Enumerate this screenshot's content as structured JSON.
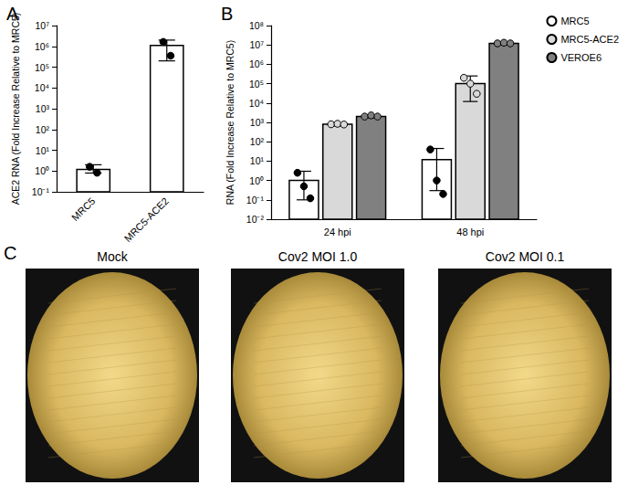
{
  "chart_data": [
    {
      "type": "bar",
      "title": "A",
      "categories": [
        "MRC5",
        "MRC5-ACE2"
      ],
      "values": [
        1.2,
        1100000
      ],
      "error_bars": [
        [
          0.8,
          2
        ],
        [
          200000,
          2000000
        ]
      ],
      "points": [
        [
          1.6,
          0.9
        ],
        [
          1800000,
          400000
        ]
      ],
      "color": "#ffffff",
      "ylabel": "ACE2 RNA (Fold Increase Relative to MRC5)",
      "log": "y",
      "ylim": [
        0.1,
        10000000
      ],
      "yticks": [
        {
          "value": 0.1,
          "label": "10⁻¹"
        },
        {
          "value": 1,
          "label": "10⁰"
        },
        {
          "value": 10,
          "label": "10¹"
        },
        {
          "value": 100,
          "label": "10²"
        },
        {
          "value": 1000,
          "label": "10³"
        },
        {
          "value": 10000,
          "label": "10⁴"
        },
        {
          "value": 100000,
          "label": "10⁵"
        },
        {
          "value": 1000000,
          "label": "10⁶"
        },
        {
          "value": 10000000,
          "label": "10⁷"
        }
      ],
      "grid": false
    },
    {
      "type": "bar",
      "title": "B",
      "categories": [
        "24 hpi",
        "48 hpi"
      ],
      "series": [
        {
          "name": "MRC5",
          "color": "#ffffff",
          "values": [
            1,
            12
          ],
          "error_bars": [
            [
              0.1,
              3
            ],
            [
              0.3,
              45
            ]
          ],
          "points": [
            [
              2.5,
              0.5,
              0.12
            ],
            [
              40,
              1,
              0.2
            ]
          ]
        },
        {
          "name": "MRC5-ACE2",
          "color": "#d9d9d9",
          "values": [
            800,
            100000
          ],
          "error_bars": [
            [
              650,
              950
            ],
            [
              12000,
              250000
            ]
          ],
          "points": [
            [
              800,
              850,
              780
            ],
            [
              200000,
              100000,
              30000
            ]
          ]
        },
        {
          "name": "VEROE6",
          "color": "#808080",
          "values": [
            2000,
            12000000
          ],
          "error_bars": [
            [
              1700,
              2400
            ],
            [
              10000000,
              14000000
            ]
          ],
          "points": [
            [
              2000,
              2300,
              2000
            ],
            [
              12000000,
              13000000,
              12000000
            ]
          ]
        }
      ],
      "ylabel": "RNA (Fold Increase Relative to MRC5)",
      "log": "y",
      "ylim": [
        0.01,
        100000000
      ],
      "yticks": [
        {
          "value": 0.01,
          "label": "10⁻²"
        },
        {
          "value": 0.1,
          "label": "10⁻¹"
        },
        {
          "value": 1,
          "label": "10⁰"
        },
        {
          "value": 10,
          "label": "10¹"
        },
        {
          "value": 100,
          "label": "10²"
        },
        {
          "value": 1000,
          "label": "10³"
        },
        {
          "value": 10000,
          "label": "10⁴"
        },
        {
          "value": 100000,
          "label": "10⁵"
        },
        {
          "value": 1000000,
          "label": "10⁶"
        },
        {
          "value": 10000000,
          "label": "10⁷"
        },
        {
          "value": 100000000,
          "label": "10⁸"
        }
      ],
      "legend": "top-right",
      "grid": false
    }
  ],
  "images": {
    "title": "C",
    "panels": [
      "Mock",
      "Cov2 MOI 1.0",
      "Cov2 MOI 0.1"
    ]
  }
}
